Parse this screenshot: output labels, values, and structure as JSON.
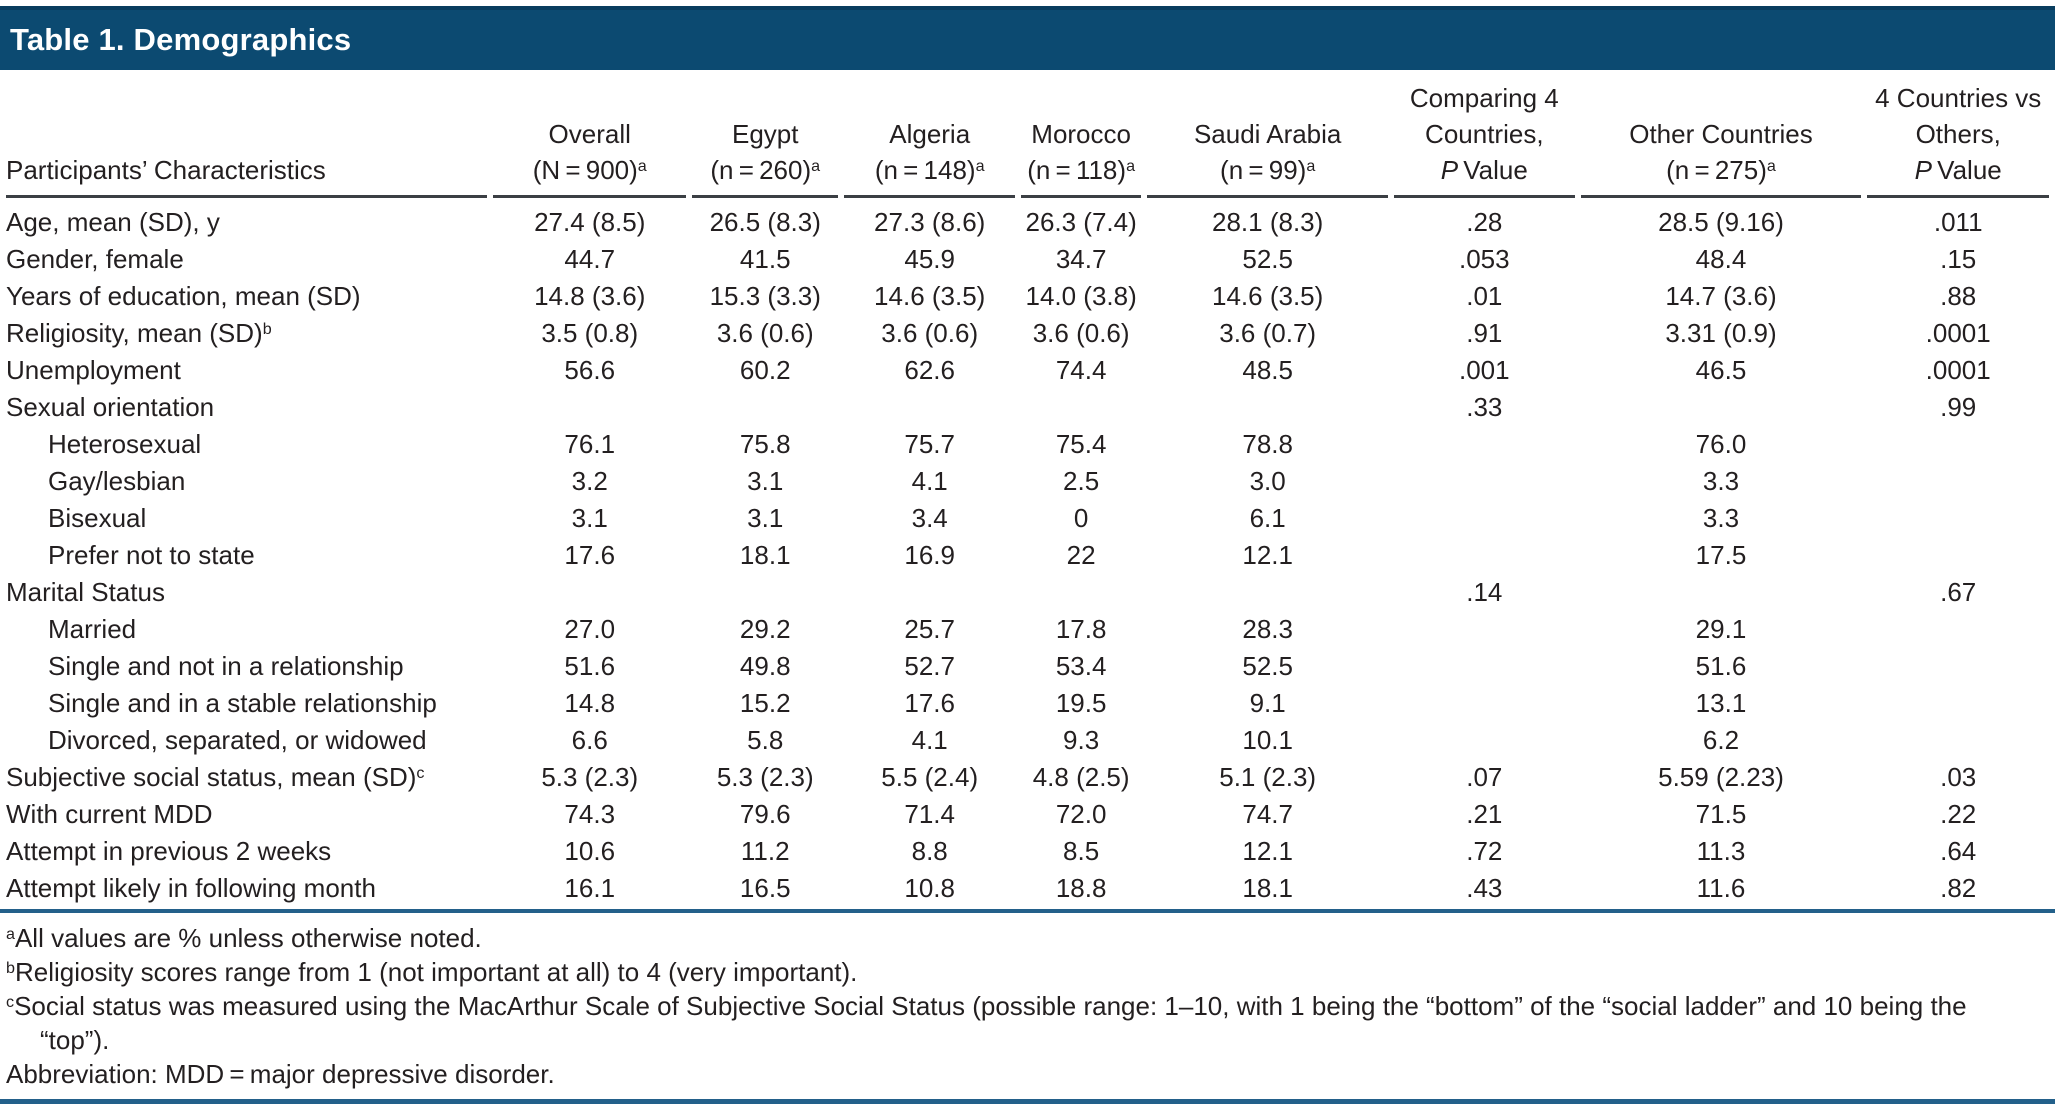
{
  "title": "Table 1. Demographics",
  "colors": {
    "header_bar": "#0c4a71",
    "blue_rule": "#23608a",
    "header_underline": "#3b3f44",
    "text": "#231f20"
  },
  "table": {
    "columns": [
      {
        "id": "characteristics",
        "l1": "",
        "l2": "Participants’ Characteristics",
        "sup": ""
      },
      {
        "id": "overall",
        "l1": "Overall",
        "l2": "(N = 900)",
        "sup": "a"
      },
      {
        "id": "egypt",
        "l1": "Egypt",
        "l2": "(n = 260)",
        "sup": "a"
      },
      {
        "id": "algeria",
        "l1": "Algeria",
        "l2": "(n = 148)",
        "sup": "a"
      },
      {
        "id": "morocco",
        "l1": "Morocco",
        "l2": "(n = 118)",
        "sup": "a"
      },
      {
        "id": "saudi-arabia",
        "l1": "Saudi Arabia",
        "l2": "(n = 99)",
        "sup": "a"
      },
      {
        "id": "comparing-4-countries-p-value",
        "l1": "Comparing 4",
        "l2": "Countries,",
        "p": "P",
        "value_word": "Value"
      },
      {
        "id": "other-countries",
        "l1": "Other Countries",
        "l2": "(n = 275)",
        "sup": "a"
      },
      {
        "id": "4-countries-vs-others-p-value",
        "l1": "4 Countries vs",
        "l2": "Others,",
        "p": "P",
        "value_word": "Value"
      }
    ],
    "rows": [
      {
        "label": "Age, mean (SD), y",
        "values": [
          "27.4 (8.5)",
          "26.5 (8.3)",
          "27.3 (8.6)",
          "26.3 (7.4)",
          "28.1 (8.3)",
          ".28",
          "28.5 (9.16)",
          ".011"
        ]
      },
      {
        "label": "Gender, female",
        "values": [
          "44.7",
          "41.5",
          "45.9",
          "34.7",
          "52.5",
          ".053",
          "48.4",
          ".15"
        ]
      },
      {
        "label": "Years of education, mean (SD)",
        "values": [
          "14.8 (3.6)",
          "15.3 (3.3)",
          "14.6 (3.5)",
          "14.0 (3.8)",
          "14.6 (3.5)",
          ".01",
          "14.7 (3.6)",
          ".88"
        ]
      },
      {
        "label": "Religiosity, mean (SD)",
        "sup": "b",
        "values": [
          "3.5 (0.8)",
          "3.6 (0.6)",
          "3.6 (0.6)",
          "3.6 (0.6)",
          "3.6 (0.7)",
          ".91",
          "3.31 (0.9)",
          ".0001"
        ]
      },
      {
        "label": "Unemployment",
        "values": [
          "56.6",
          "60.2",
          "62.6",
          "74.4",
          "48.5",
          ".001",
          "46.5",
          ".0001"
        ]
      },
      {
        "label": "Sexual orientation",
        "values": [
          "",
          "",
          "",
          "",
          "",
          ".33",
          "",
          ".99"
        ]
      },
      {
        "label": "Heterosexual",
        "indent": true,
        "values": [
          "76.1",
          "75.8",
          "75.7",
          "75.4",
          "78.8",
          "",
          "76.0",
          ""
        ]
      },
      {
        "label": "Gay/lesbian",
        "indent": true,
        "values": [
          "3.2",
          "3.1",
          "4.1",
          "2.5",
          "3.0",
          "",
          "3.3",
          ""
        ]
      },
      {
        "label": "Bisexual",
        "indent": true,
        "values": [
          "3.1",
          "3.1",
          "3.4",
          "0",
          "6.1",
          "",
          "3.3",
          ""
        ]
      },
      {
        "label": "Prefer not to state",
        "indent": true,
        "values": [
          "17.6",
          "18.1",
          "16.9",
          "22",
          "12.1",
          "",
          "17.5",
          ""
        ]
      },
      {
        "label": "Marital Status",
        "values": [
          "",
          "",
          "",
          "",
          "",
          ".14",
          "",
          ".67"
        ]
      },
      {
        "label": "Married",
        "indent": true,
        "values": [
          "27.0",
          "29.2",
          "25.7",
          "17.8",
          "28.3",
          "",
          "29.1",
          ""
        ]
      },
      {
        "label": "Single and not in a relationship",
        "indent": true,
        "values": [
          "51.6",
          "49.8",
          "52.7",
          "53.4",
          "52.5",
          "",
          "51.6",
          ""
        ]
      },
      {
        "label": "Single and in a stable relationship",
        "indent": true,
        "values": [
          "14.8",
          "15.2",
          "17.6",
          "19.5",
          "9.1",
          "",
          "13.1",
          ""
        ]
      },
      {
        "label": "Divorced, separated, or widowed",
        "indent": true,
        "values": [
          "6.6",
          "5.8",
          "4.1",
          "9.3",
          "10.1",
          "",
          "6.2",
          ""
        ]
      },
      {
        "label": "Subjective social status, mean (SD)",
        "sup": "c",
        "values": [
          "5.3 (2.3)",
          "5.3 (2.3)",
          "5.5 (2.4)",
          "4.8 (2.5)",
          "5.1 (2.3)",
          ".07",
          "5.59 (2.23)",
          ".03"
        ]
      },
      {
        "label": "With current MDD",
        "values": [
          "74.3",
          "79.6",
          "71.4",
          "72.0",
          "74.7",
          ".21",
          "71.5",
          ".22"
        ]
      },
      {
        "label": "Attempt in previous 2 weeks",
        "values": [
          "10.6",
          "11.2",
          "8.8",
          "8.5",
          "12.1",
          ".72",
          "11.3",
          ".64"
        ]
      },
      {
        "label": "Attempt likely in following month",
        "values": [
          "16.1",
          "16.5",
          "10.8",
          "18.8",
          "18.1",
          ".43",
          "11.6",
          ".82"
        ]
      }
    ]
  },
  "footnotes": [
    {
      "sup": "a",
      "text": "All values are % unless otherwise noted."
    },
    {
      "sup": "b",
      "text": "Religiosity scores range from 1 (not important at all) to 4 (very important)."
    },
    {
      "sup": "c",
      "text": "Social status was measured using the MacArthur Scale of Subjective Social Status (possible range: 1–10, with 1 being the “bottom” of the “social ladder” and 10 being the “top”)."
    },
    {
      "sup": "",
      "text": "Abbreviation: MDD = major depressive disorder."
    }
  ]
}
